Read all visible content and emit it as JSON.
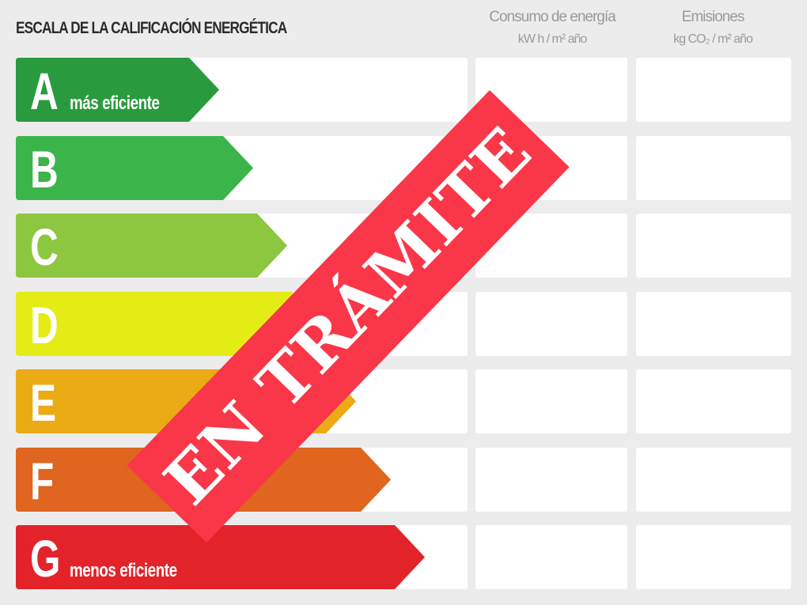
{
  "title": "ESCALA DE LA CALIFICACIÓN ENERGÉTICA",
  "columns": [
    {
      "label": "Consumo de energía",
      "unit": "kW h / m² año"
    },
    {
      "label": "Emisiones",
      "unit": "kg CO₂ / m² año"
    }
  ],
  "ratings": [
    {
      "letter": "A",
      "desc": "más eficiente",
      "color": "#2a9a3e"
    },
    {
      "letter": "B",
      "desc": "",
      "color": "#3bb44a"
    },
    {
      "letter": "C",
      "desc": "",
      "color": "#8dc63f"
    },
    {
      "letter": "D",
      "desc": "",
      "color": "#e4ec16"
    },
    {
      "letter": "E",
      "desc": "",
      "color": "#eaab14"
    },
    {
      "letter": "F",
      "desc": "",
      "color": "#e0651f"
    },
    {
      "letter": "G",
      "desc": "menos eficiente",
      "color": "#e2232a"
    }
  ],
  "banner": {
    "text": "EN TRÁMITE",
    "color": "#f93748"
  }
}
